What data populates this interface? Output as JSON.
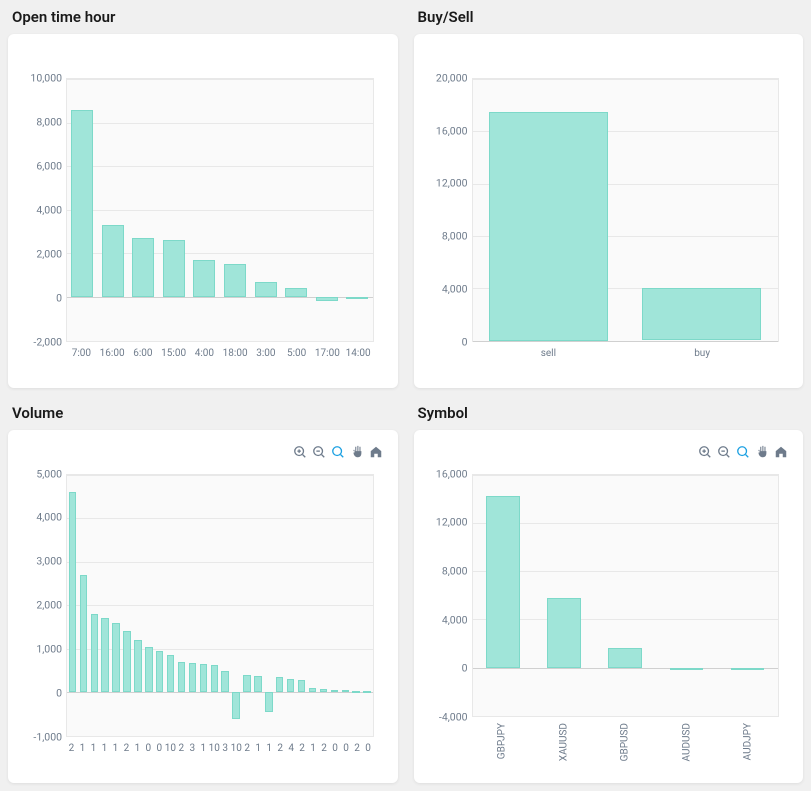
{
  "page_background": "#f0f0f0",
  "card_background": "#ffffff",
  "plot_background": "#fafafa",
  "grid_color": "#e8e8e8",
  "text_color": "#6e7b8b",
  "bar_fill": "#a0e5d9",
  "bar_stroke": "#7dd9c9",
  "tool_icon_color": "#6e7b8b",
  "tool_icon_selected": "#1ba0e2",
  "title_fontsize": 15,
  "axis_fontsize": 10.5,
  "panels": {
    "open_time_hour": {
      "title": "Open time hour",
      "type": "bar",
      "has_toolbar": false,
      "ylim": [
        -2000,
        10000
      ],
      "ytick_step": 2000,
      "yticks": [
        -2000,
        0,
        2000,
        4000,
        6000,
        8000,
        10000
      ],
      "categories": [
        "7:00",
        "16:00",
        "6:00",
        "15:00",
        "4:00",
        "18:00",
        "3:00",
        "5:00",
        "17:00",
        "14:00"
      ],
      "values": [
        8600,
        3300,
        2700,
        2600,
        1700,
        1500,
        700,
        400,
        -200,
        -100
      ],
      "bar_width": 0.72,
      "xlabel_rotated": false
    },
    "buy_sell": {
      "title": "Buy/Sell",
      "type": "bar",
      "has_toolbar": false,
      "ylim": [
        0,
        20000
      ],
      "ytick_step": 4000,
      "yticks": [
        0,
        4000,
        8000,
        12000,
        16000,
        20000
      ],
      "categories": [
        "sell",
        "buy"
      ],
      "values": [
        17500,
        4000
      ],
      "bar_width": 0.78,
      "xlabel_rotated": false
    },
    "volume": {
      "title": "Volume",
      "type": "bar",
      "has_toolbar": true,
      "ylim": [
        -1000,
        5000
      ],
      "ytick_step": 1000,
      "yticks": [
        -1000,
        0,
        1000,
        2000,
        3000,
        4000,
        5000
      ],
      "categories": [
        "2",
        "1",
        "1",
        "1",
        "1",
        "2",
        "1",
        "0",
        "0",
        "10",
        "2",
        "3",
        "1",
        "10",
        "3",
        "10",
        "2",
        "1",
        "1",
        "2",
        "4",
        "2",
        "1",
        "2",
        "0",
        "0",
        "2",
        "0"
      ],
      "values": [
        4600,
        2700,
        1800,
        1700,
        1600,
        1400,
        1200,
        1050,
        950,
        850,
        700,
        680,
        650,
        620,
        500,
        -600,
        400,
        380,
        -450,
        350,
        300,
        280,
        100,
        80,
        60,
        50,
        40,
        30
      ],
      "bar_width": 0.68,
      "xlabel_rotated": false
    },
    "symbol": {
      "title": "Symbol",
      "type": "bar",
      "has_toolbar": true,
      "ylim": [
        -4000,
        16000
      ],
      "ytick_step": 4000,
      "yticks": [
        -4000,
        0,
        4000,
        8000,
        12000,
        16000
      ],
      "categories": [
        "GBPJPY",
        "XAUUSD",
        "GBPUSD",
        "AUDUSD",
        "AUDJPY"
      ],
      "values": [
        14200,
        5800,
        1600,
        -200,
        -150
      ],
      "bar_width": 0.55,
      "xlabel_rotated": true
    }
  },
  "toolbar_icons": [
    {
      "name": "zoom-in-icon",
      "selected": false
    },
    {
      "name": "zoom-out-icon",
      "selected": false
    },
    {
      "name": "zoom-select-icon",
      "selected": true
    },
    {
      "name": "pan-icon",
      "selected": false
    },
    {
      "name": "home-icon",
      "selected": false
    }
  ]
}
